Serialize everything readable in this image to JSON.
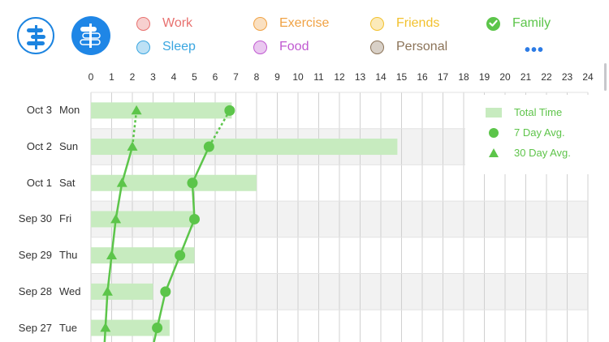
{
  "toolbar": {
    "timeline_icon": "timeline-icon",
    "chart_icon": "bar-chart-icon"
  },
  "categories": [
    {
      "label": "Work",
      "color": "#e8716f",
      "selected": false
    },
    {
      "label": "Exercise",
      "color": "#f0a244",
      "selected": false
    },
    {
      "label": "Friends",
      "color": "#f2c12e",
      "selected": false
    },
    {
      "label": "Family",
      "color": "#5cc54a",
      "selected": true
    },
    {
      "label": "Sleep",
      "color": "#3aa6e0",
      "selected": false
    },
    {
      "label": "Food",
      "color": "#c05ad1",
      "selected": false
    },
    {
      "label": "Personal",
      "color": "#8b7358",
      "selected": false
    }
  ],
  "more_label": "•••",
  "chart_data": {
    "type": "bar",
    "orientation": "horizontal",
    "x_ticks": [
      "0",
      "1",
      "2",
      "3",
      "4",
      "5",
      "6",
      "7",
      "8",
      "9",
      "10",
      "11",
      "12",
      "13",
      "14",
      "15",
      "16",
      "17",
      "18",
      "19",
      "20",
      "21",
      "22",
      "23",
      "24"
    ],
    "xlim": [
      0,
      24
    ],
    "rows": [
      {
        "date": "Oct 3",
        "day": "Mon",
        "total": 6.8,
        "avg7": 6.7,
        "avg30": 2.2
      },
      {
        "date": "Oct 2",
        "day": "Sun",
        "total": 14.8,
        "avg7": 5.7,
        "avg30": 2.0
      },
      {
        "date": "Oct 1",
        "day": "Sat",
        "total": 8.0,
        "avg7": 4.9,
        "avg30": 1.5
      },
      {
        "date": "Sep 30",
        "day": "Fri",
        "total": 5.0,
        "avg7": 5.0,
        "avg30": 1.2
      },
      {
        "date": "Sep 29",
        "day": "Thu",
        "total": 5.0,
        "avg7": 4.3,
        "avg30": 1.0
      },
      {
        "date": "Sep 28",
        "day": "Wed",
        "total": 3.0,
        "avg7": 3.6,
        "avg30": 0.8
      },
      {
        "date": "Sep 27",
        "day": "Tue",
        "total": 3.8,
        "avg7": 3.2,
        "avg30": 0.7
      }
    ],
    "legend": [
      {
        "label": "Total Time",
        "symbol": "bar"
      },
      {
        "label": "7 Day Avg.",
        "symbol": "circle"
      },
      {
        "label": "30 Day Avg.",
        "symbol": "triangle"
      }
    ],
    "legend_position": "top-right",
    "colors": {
      "bar": "#c7ebbf",
      "line": "#5cc54a",
      "stripe": "#f2f2f2",
      "grid": "#d0d0d0"
    }
  }
}
